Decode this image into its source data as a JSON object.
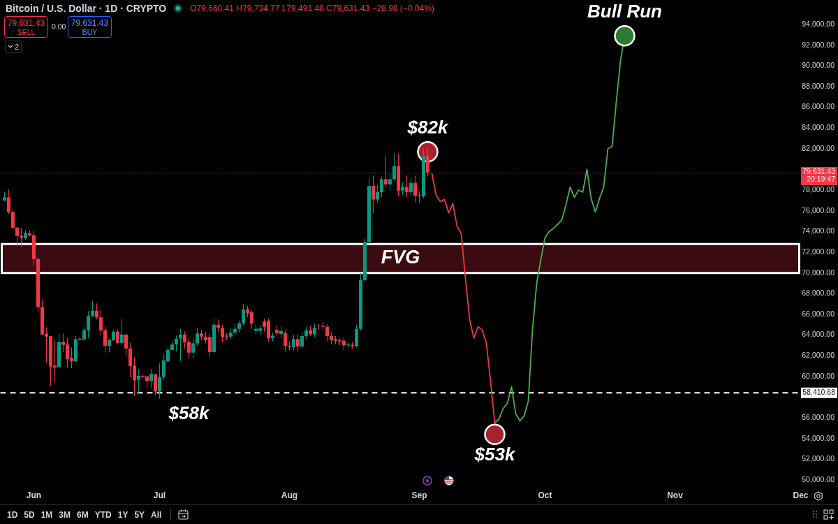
{
  "chart_data": {
    "type": "candlestick",
    "title": "Bitcoin / U.S. Dollar · 1D · CRYPTO",
    "subtitle": "O79,660.41 H79,734.77 L79,491.48 C79,631.43 −28.98 (−0.04%)",
    "x": [
      "--05-25",
      "--05-26",
      "--05-27",
      "--05-28",
      "--05-29",
      "--05-30",
      "--05-31",
      "--06-01",
      "--06-02",
      "--06-03",
      "--06-04",
      "--06-05",
      "--06-06",
      "--06-07",
      "--06-08",
      "--06-09",
      "--06-10",
      "--06-11",
      "--06-12",
      "--06-13",
      "--06-14",
      "--06-15",
      "--06-16",
      "--06-17",
      "--06-18",
      "--06-19",
      "--06-20",
      "--06-21",
      "--06-22",
      "--06-23",
      "--06-24",
      "--06-25",
      "--06-26",
      "--06-27",
      "--06-28",
      "--06-29",
      "--06-30",
      "--07-01",
      "--07-02",
      "--07-03",
      "--07-04",
      "--07-05",
      "--07-06",
      "--07-07",
      "--07-08",
      "--07-09",
      "--07-10",
      "--07-11",
      "--07-12",
      "--07-13",
      "--07-14",
      "--07-15",
      "--07-16",
      "--07-17",
      "--07-18",
      "--07-19",
      "--07-20",
      "--07-21",
      "--07-22",
      "--07-23",
      "--07-24",
      "--07-25",
      "--07-26",
      "--07-27",
      "--07-28",
      "--07-29",
      "--07-30",
      "--07-31",
      "--08-01",
      "--08-02",
      "--08-03",
      "--08-04",
      "--08-05",
      "--08-06",
      "--08-07",
      "--08-08",
      "--08-09",
      "--08-10",
      "--08-11",
      "--08-12",
      "--08-13",
      "--08-14",
      "--08-15",
      "--08-16",
      "--08-17",
      "--08-18",
      "--08-19",
      "--08-20",
      "--08-21",
      "--08-22",
      "--08-23",
      "--08-24",
      "--08-25",
      "--08-26",
      "--08-27",
      "--08-28",
      "--08-29",
      "--08-30",
      "--08-31",
      "--09-01",
      "--09-02",
      "--09-03"
    ],
    "ohlc": [
      [
        77000,
        77850,
        76950,
        77300
      ],
      [
        77300,
        78050,
        75700,
        75850
      ],
      [
        75900,
        76100,
        74250,
        74350
      ],
      [
        74380,
        74470,
        72600,
        73570
      ],
      [
        73600,
        74350,
        72500,
        73400
      ],
      [
        73350,
        74100,
        73200,
        73850
      ],
      [
        73850,
        74150,
        73550,
        73620
      ],
      [
        73660,
        74060,
        70700,
        71320
      ],
      [
        71360,
        71400,
        66200,
        66700
      ],
      [
        66700,
        67450,
        64000,
        64050
      ],
      [
        64100,
        64750,
        61350,
        63850
      ],
      [
        63900,
        63900,
        59100,
        60950
      ],
      [
        61050,
        63500,
        59500,
        60850
      ],
      [
        60900,
        64100,
        60900,
        63350
      ],
      [
        63350,
        64150,
        62350,
        63050
      ],
      [
        63100,
        63700,
        60850,
        61700
      ],
      [
        61800,
        62800,
        60800,
        61450
      ],
      [
        61450,
        63950,
        61450,
        63600
      ],
      [
        63650,
        63850,
        63450,
        63550
      ],
      [
        63550,
        64750,
        63550,
        64500
      ],
      [
        64450,
        66300,
        63700,
        65850
      ],
      [
        65850,
        67300,
        65750,
        66350
      ],
      [
        66350,
        67050,
        65500,
        65700
      ],
      [
        65700,
        66400,
        63950,
        64450
      ],
      [
        64500,
        64850,
        62300,
        62950
      ],
      [
        62950,
        63700,
        62350,
        63500
      ],
      [
        63500,
        64500,
        63450,
        64300
      ],
      [
        64300,
        64550,
        63200,
        63250
      ],
      [
        63250,
        65550,
        63200,
        64050
      ],
      [
        64050,
        64050,
        61900,
        62700
      ],
      [
        62700,
        63250,
        59900,
        61000
      ],
      [
        61050,
        61900,
        58100,
        59650
      ],
      [
        59700,
        60700,
        58300,
        60050
      ],
      [
        60050,
        60150,
        59900,
        59950
      ],
      [
        60000,
        60100,
        58900,
        59550
      ],
      [
        59550,
        60750,
        58900,
        60250
      ],
      [
        60200,
        60250,
        58200,
        58550
      ],
      [
        58550,
        61250,
        57850,
        59950
      ],
      [
        59950,
        62150,
        59650,
        61550
      ],
      [
        61450,
        62800,
        61300,
        62550
      ],
      [
        62550,
        63450,
        62500,
        63100
      ],
      [
        63100,
        63950,
        62450,
        63650
      ],
      [
        63650,
        64600,
        61450,
        64050
      ],
      [
        64050,
        64350,
        62700,
        63300
      ],
      [
        63350,
        63700,
        61700,
        62300
      ],
      [
        62300,
        63700,
        61700,
        63200
      ],
      [
        63200,
        64650,
        62950,
        64150
      ],
      [
        64150,
        64500,
        63500,
        63850
      ],
      [
        63850,
        64300,
        63200,
        63500
      ],
      [
        63800,
        64100,
        61900,
        62350
      ],
      [
        62350,
        65600,
        62200,
        65000
      ],
      [
        65000,
        65500,
        64300,
        64700
      ],
      [
        64700,
        65000,
        63300,
        63800
      ],
      [
        63950,
        64200,
        63500,
        63850
      ],
      [
        63850,
        64700,
        63600,
        64250
      ],
      [
        64250,
        65100,
        64000,
        64600
      ],
      [
        64600,
        65400,
        64200,
        65150
      ],
      [
        65150,
        67000,
        64900,
        66500
      ],
      [
        66500,
        66800,
        65700,
        66100
      ],
      [
        66200,
        66400,
        64600,
        65100
      ],
      [
        64400,
        65100,
        64100,
        64600
      ],
      [
        64400,
        65000,
        64000,
        64650
      ],
      [
        65300,
        65600,
        64300,
        64800
      ],
      [
        65400,
        65600,
        63400,
        63700
      ],
      [
        63700,
        64200,
        63400,
        63950
      ],
      [
        64500,
        64900,
        63900,
        64200
      ],
      [
        64100,
        64800,
        63700,
        64400
      ],
      [
        64200,
        64500,
        62400,
        62950
      ],
      [
        62950,
        63400,
        62500,
        62850
      ],
      [
        62850,
        64000,
        62500,
        63600
      ],
      [
        63600,
        64100,
        62400,
        62900
      ],
      [
        62900,
        64300,
        62700,
        63900
      ],
      [
        63900,
        64800,
        63600,
        64450
      ],
      [
        64450,
        64900,
        63900,
        64100
      ],
      [
        64100,
        65100,
        63800,
        64700
      ],
      [
        64900,
        65100,
        64500,
        64850
      ],
      [
        64900,
        65300,
        64500,
        64800
      ],
      [
        64800,
        65100,
        63400,
        63900
      ],
      [
        63900,
        64300,
        63100,
        63500
      ],
      [
        63600,
        63900,
        63100,
        63450
      ],
      [
        63500,
        63700,
        63000,
        63400
      ],
      [
        63450,
        63700,
        62500,
        63000
      ],
      [
        63000,
        63300,
        62800,
        63100
      ],
      [
        63050,
        63300,
        62700,
        62950
      ],
      [
        62950,
        65000,
        62800,
        64600
      ],
      [
        64600,
        70000,
        64400,
        69300
      ],
      [
        69300,
        73300,
        69100,
        73000
      ],
      [
        73000,
        79200,
        72800,
        78400
      ],
      [
        78400,
        79400,
        75800,
        77100
      ],
      [
        77100,
        78500,
        76800,
        77800
      ],
      [
        77800,
        79300,
        77300,
        79050
      ],
      [
        79050,
        81300,
        78200,
        78550
      ],
      [
        78550,
        79600,
        78000,
        79050
      ],
      [
        79050,
        81600,
        78900,
        80300
      ],
      [
        80300,
        81500,
        77400,
        77950
      ],
      [
        77950,
        78800,
        77500,
        78300
      ],
      [
        78300,
        79400,
        77300,
        77800
      ],
      [
        77800,
        79200,
        77500,
        78700
      ],
      [
        78700,
        79400,
        76800,
        77450
      ],
      [
        77500,
        77900,
        76800,
        77400
      ],
      [
        77400,
        82000,
        77200,
        81300
      ],
      [
        81300,
        82100,
        79300,
        79700
      ]
    ],
    "colors": [
      "#089981",
      "#f23645",
      "#f23645",
      "#f23645",
      "#f23645",
      "#089981",
      "#f23645",
      "#f23645",
      "#f23645",
      "#f23645",
      "#f23645",
      "#f23645",
      "#f23645",
      "#089981",
      "#f23645",
      "#f23645",
      "#f23645",
      "#089981",
      "#f23645",
      "#089981",
      "#089981",
      "#089981",
      "#f23645",
      "#f23645",
      "#f23645",
      "#089981",
      "#089981",
      "#f23645",
      "#089981",
      "#f23645",
      "#f23645",
      "#f23645",
      "#089981",
      "#f23645",
      "#f23645",
      "#089981",
      "#f23645",
      "#089981",
      "#089981",
      "#089981",
      "#089981",
      "#089981",
      "#089981",
      "#f23645",
      "#f23645",
      "#089981",
      "#089981",
      "#f23645",
      "#f23645",
      "#f23645",
      "#089981",
      "#f23645",
      "#f23645",
      "#f23645",
      "#089981",
      "#089981",
      "#089981",
      "#089981",
      "#f23645",
      "#f23645",
      "#089981",
      "#089981",
      "#f23645",
      "#f23645",
      "#089981",
      "#f23645",
      "#089981",
      "#f23645",
      "#f23645",
      "#089981",
      "#f23645",
      "#089981",
      "#089981",
      "#f23645",
      "#089981",
      "#f23645",
      "#f23645",
      "#f23645",
      "#f23645",
      "#f23645",
      "#f23645",
      "#f23645",
      "#089981",
      "#f23645",
      "#089981",
      "#089981",
      "#089981",
      "#089981",
      "#f23645",
      "#089981",
      "#089981",
      "#f23645",
      "#089981",
      "#089981",
      "#f23645",
      "#089981",
      "#f23645",
      "#089981",
      "#f23645",
      "#f23645",
      "#089981",
      "#f23645"
    ],
    "series": [
      {
        "type": "line",
        "color": "#f23645",
        "x": [
          "--09-04",
          "--09-05",
          "--09-06",
          "--09-07",
          "--09-08",
          "--09-09",
          "--09-10",
          "--09-11",
          "--09-12",
          "--09-13",
          "--09-14",
          "--09-15",
          "--09-16",
          "--09-17",
          "--09-18",
          "--09-19"
        ],
        "values": [
          79600,
          77500,
          76900,
          77100,
          75800,
          76700,
          74500,
          73800,
          69500,
          65500,
          63700,
          64800,
          64500,
          63200,
          59500,
          55500
        ]
      },
      {
        "type": "line",
        "color": "#4caf50",
        "x": [
          "--09-19",
          "--09-20",
          "--09-21",
          "--09-22",
          "--09-23",
          "--09-24",
          "--09-25",
          "--09-26",
          "--09-27",
          "--09-28",
          "--09-29",
          "--09-30",
          "--10-01",
          "--10-02",
          "--10-03",
          "--10-04",
          "--10-05",
          "--10-06",
          "--10-07",
          "--10-08",
          "--10-09",
          "--10-10",
          "--10-11",
          "--10-12",
          "--10-13",
          "--10-14",
          "--10-15",
          "--10-16",
          "--10-17",
          "--10-18",
          "--10-19",
          "--10-20"
        ],
        "values": [
          55500,
          55900,
          56900,
          57400,
          59000,
          56400,
          55700,
          56200,
          57600,
          64500,
          69000,
          71300,
          73400,
          74000,
          74300,
          74700,
          75100,
          76600,
          78300,
          77300,
          78000,
          77800,
          80000,
          77200,
          75900,
          77200,
          78300,
          82000,
          82200,
          86500,
          90500,
          92900
        ]
      },
      {
        "type": "scatter",
        "marker": "circle",
        "x": [
          "--09-03",
          "--09-19",
          "--10-20"
        ],
        "values": [
          81700,
          54400,
          92900
        ],
        "colors": [
          "#a8222e",
          "#a8222e",
          "#2e7a34"
        ]
      }
    ],
    "annotations": [
      "79,631.43",
      "SELL",
      "0.00",
      "79,631.43",
      "BUY",
      "2",
      "1D",
      "5D",
      "1M",
      "3M",
      "6M",
      "YTD",
      "1Y",
      "5Y",
      "All",
      {
        "text": "$82k",
        "x": "--09-03",
        "y": 81700
      },
      {
        "text": "$53k",
        "x": "--09-19",
        "y": 54400
      },
      {
        "text": "Bull Run",
        "x": "--10-20",
        "y": 92900
      },
      {
        "text": "$58k",
        "x": "--07-08",
        "y": 58410.68
      }
    ],
    "bands": [
      {
        "axis": "y",
        "from": 70000,
        "to": 72800,
        "label": "FVG",
        "color": "#3a0c12"
      }
    ],
    "ref_lines": [
      {
        "axis": "y",
        "value": 58410.68,
        "label": "58,410.68",
        "color": "#ffffff",
        "line_style": "dashed"
      },
      {
        "axis": "y",
        "value": 79631.43,
        "label": "79,631.43\n20:19:47",
        "color": "#f23645",
        "line_style": "dotted"
      }
    ],
    "xlim": [
      "--05-24",
      "--12-01"
    ],
    "xticks": [
      {
        "value": "--06-01",
        "label": "Jun"
      },
      {
        "value": "--07-01",
        "label": "Jul"
      },
      {
        "value": "--08-01",
        "label": "Aug"
      },
      {
        "value": "--09-01",
        "label": "Sep"
      },
      {
        "value": "--10-01",
        "label": "Oct"
      },
      {
        "value": "--11-01",
        "label": "Nov"
      },
      {
        "value": "--12-01",
        "label": "Dec"
      }
    ],
    "ylim": [
      50000,
      94000
    ],
    "yticks": [
      {
        "value": 50000,
        "label": "50,000.00"
      },
      {
        "value": 52000,
        "label": "52,000.00"
      },
      {
        "value": 54000,
        "label": "54,000.00"
      },
      {
        "value": 56000,
        "label": "56,000.00"
      },
      {
        "value": 60000,
        "label": "60,000.00"
      },
      {
        "value": 62000,
        "label": "62,000.00"
      },
      {
        "value": 64000,
        "label": "64,000.00"
      },
      {
        "value": 66000,
        "label": "66,000.00"
      },
      {
        "value": 68000,
        "label": "68,000.00"
      },
      {
        "value": 70000,
        "label": "70,000.00"
      },
      {
        "value": 72000,
        "label": "72,000.00"
      },
      {
        "value": 74000,
        "label": "74,000.00"
      },
      {
        "value": 76000,
        "label": "76,000.00"
      },
      {
        "value": 78000,
        "label": "78,000.00"
      },
      {
        "value": 82000,
        "label": "82,000.00"
      },
      {
        "value": 84000,
        "label": "84,000.00"
      },
      {
        "value": 86000,
        "label": "86,000.00"
      },
      {
        "value": 88000,
        "label": "88,000.00"
      },
      {
        "value": 90000,
        "label": "90,000.00"
      },
      {
        "value": 92000,
        "label": "92,000.00"
      },
      {
        "value": 94000,
        "label": "94,000.00"
      }
    ]
  }
}
